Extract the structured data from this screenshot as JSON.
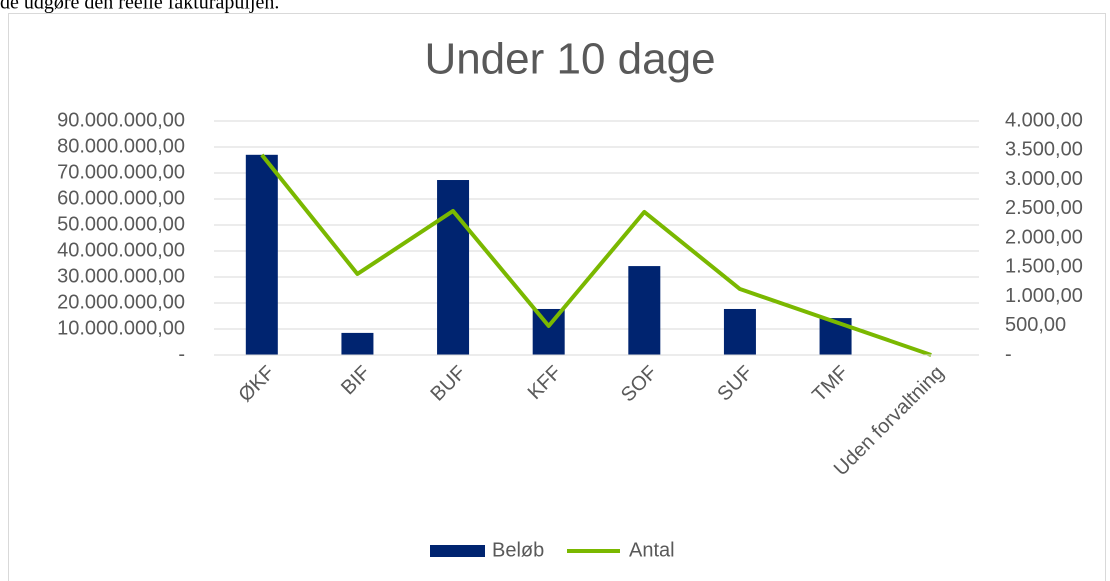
{
  "page_text": "de udgøre den reelle fakturapuljen.",
  "chart_data": {
    "type": "bar",
    "title": "Under 10 dage",
    "categories": [
      "ØKF",
      "BIF",
      "BUF",
      "KFF",
      "SOF",
      "SUF",
      "TMF",
      "Uden forvaltning"
    ],
    "series": [
      {
        "name": "Beløb",
        "type": "bar",
        "color": "#002470",
        "values": [
          77000000,
          8500000,
          67300000,
          17700000,
          34200000,
          17700000,
          14200000,
          0
        ]
      },
      {
        "name": "Antal",
        "type": "line",
        "axis": "y2",
        "color": "#7ab800",
        "values": [
          3420,
          1385,
          2462,
          496,
          2445,
          1128,
          564,
          0
        ]
      }
    ],
    "ylim": [
      0,
      90000000
    ],
    "yticks": [
      {
        "value": 0,
        "label": "-"
      },
      {
        "value": 10000000,
        "label": "10.000.000,00"
      },
      {
        "value": 20000000,
        "label": "20.000.000,00"
      },
      {
        "value": 30000000,
        "label": "30.000.000,00"
      },
      {
        "value": 40000000,
        "label": "40.000.000,00"
      },
      {
        "value": 50000000,
        "label": "50.000.000,00"
      },
      {
        "value": 60000000,
        "label": "60.000.000,00"
      },
      {
        "value": 70000000,
        "label": "70.000.000,00"
      },
      {
        "value": 80000000,
        "label": "80.000.000,00"
      },
      {
        "value": 90000000,
        "label": "90.000.000,00"
      }
    ],
    "y2lim": [
      0,
      4000
    ],
    "y2ticks": [
      {
        "value": 0,
        "label": "-"
      },
      {
        "value": 500,
        "label": "500,00"
      },
      {
        "value": 1000,
        "label": "1.000,00"
      },
      {
        "value": 1500,
        "label": "1.500,00"
      },
      {
        "value": 2000,
        "label": "2.000,00"
      },
      {
        "value": 2500,
        "label": "2.500,00"
      },
      {
        "value": 3000,
        "label": "3.000,00"
      },
      {
        "value": 3500,
        "label": "3.500,00"
      },
      {
        "value": 4000,
        "label": "4.000,00"
      }
    ],
    "grid": true,
    "legend": "bottom"
  }
}
